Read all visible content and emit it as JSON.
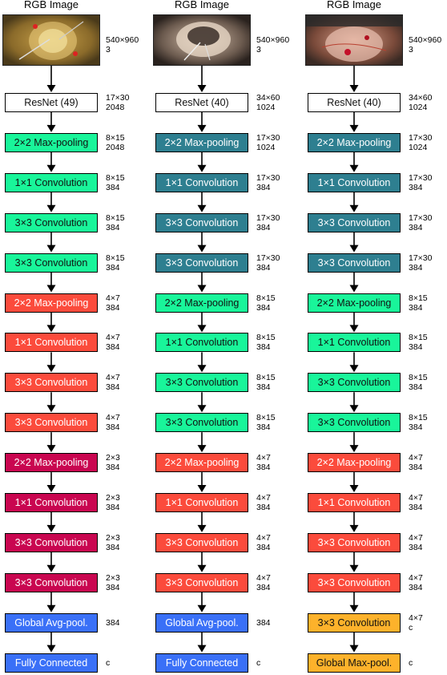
{
  "colors": {
    "white": "#ffffff",
    "green": "#19f59a",
    "teal": "#2e7f90",
    "red": "#fb4b3c",
    "crimson": "#c90650",
    "blue": "#3a70f7",
    "orange": "#fdb22b"
  },
  "columns": [
    {
      "title": "RGB Image",
      "image": {
        "dims": [
          "540×960",
          "3"
        ],
        "scene": "eye-surgery-1"
      },
      "blocks": [
        {
          "label": "ResNet (49)",
          "color": "white",
          "dims": [
            "17×30",
            "2048"
          ]
        },
        {
          "label": "2×2 Max-pooling",
          "color": "green",
          "dims": [
            "8×15",
            "2048"
          ]
        },
        {
          "label": "1×1 Convolution",
          "color": "green",
          "dims": [
            "8×15",
            "384"
          ]
        },
        {
          "label": "3×3 Convolution",
          "color": "green",
          "dims": [
            "8×15",
            "384"
          ]
        },
        {
          "label": "3×3 Convolution",
          "color": "green",
          "dims": [
            "8×15",
            "384"
          ]
        },
        {
          "label": "2×2 Max-pooling",
          "color": "red",
          "dims": [
            "4×7",
            "384"
          ]
        },
        {
          "label": "1×1 Convolution",
          "color": "red",
          "dims": [
            "4×7",
            "384"
          ]
        },
        {
          "label": "3×3 Convolution",
          "color": "red",
          "dims": [
            "4×7",
            "384"
          ]
        },
        {
          "label": "3×3 Convolution",
          "color": "red",
          "dims": [
            "4×7",
            "384"
          ]
        },
        {
          "label": "2×2 Max-pooling",
          "color": "crimson",
          "dims": [
            "2×3",
            "384"
          ]
        },
        {
          "label": "1×1 Convolution",
          "color": "crimson",
          "dims": [
            "2×3",
            "384"
          ]
        },
        {
          "label": "3×3 Convolution",
          "color": "crimson",
          "dims": [
            "2×3",
            "384"
          ]
        },
        {
          "label": "3×3 Convolution",
          "color": "crimson",
          "dims": [
            "2×3",
            "384"
          ]
        },
        {
          "label": "Global Avg-pool.",
          "color": "blue",
          "dims": [
            "384"
          ]
        },
        {
          "label": "Fully Connected",
          "color": "blue",
          "dims": [
            "c"
          ]
        }
      ]
    },
    {
      "title": "RGB Image",
      "image": {
        "dims": [
          "540×960",
          "3"
        ],
        "scene": "eye-surgery-2"
      },
      "blocks": [
        {
          "label": "ResNet (40)",
          "color": "white",
          "dims": [
            "34×60",
            "1024"
          ]
        },
        {
          "label": "2×2 Max-pooling",
          "color": "teal",
          "dims": [
            "17×30",
            "1024"
          ]
        },
        {
          "label": "1×1 Convolution",
          "color": "teal",
          "dims": [
            "17×30",
            "384"
          ]
        },
        {
          "label": "3×3 Convolution",
          "color": "teal",
          "dims": [
            "17×30",
            "384"
          ]
        },
        {
          "label": "3×3 Convolution",
          "color": "teal",
          "dims": [
            "17×30",
            "384"
          ]
        },
        {
          "label": "2×2 Max-pooling",
          "color": "green",
          "dims": [
            "8×15",
            "384"
          ]
        },
        {
          "label": "1×1 Convolution",
          "color": "green",
          "dims": [
            "8×15",
            "384"
          ]
        },
        {
          "label": "3×3 Convolution",
          "color": "green",
          "dims": [
            "8×15",
            "384"
          ]
        },
        {
          "label": "3×3 Convolution",
          "color": "green",
          "dims": [
            "8×15",
            "384"
          ]
        },
        {
          "label": "2×2 Max-pooling",
          "color": "red",
          "dims": [
            "4×7",
            "384"
          ]
        },
        {
          "label": "1×1 Convolution",
          "color": "red",
          "dims": [
            "4×7",
            "384"
          ]
        },
        {
          "label": "3×3 Convolution",
          "color": "red",
          "dims": [
            "4×7",
            "384"
          ]
        },
        {
          "label": "3×3 Convolution",
          "color": "red",
          "dims": [
            "4×7",
            "384"
          ]
        },
        {
          "label": "Global Avg-pool.",
          "color": "blue",
          "dims": [
            "384"
          ]
        },
        {
          "label": "Fully Connected",
          "color": "blue",
          "dims": [
            "c"
          ]
        }
      ]
    },
    {
      "title": "RGB Image",
      "image": {
        "dims": [
          "540×960",
          "3"
        ],
        "scene": "eye-surgery-3"
      },
      "blocks": [
        {
          "label": "ResNet (40)",
          "color": "white",
          "dims": [
            "34×60",
            "1024"
          ]
        },
        {
          "label": "2×2 Max-pooling",
          "color": "teal",
          "dims": [
            "17×30",
            "1024"
          ]
        },
        {
          "label": "1×1 Convolution",
          "color": "teal",
          "dims": [
            "17×30",
            "384"
          ]
        },
        {
          "label": "3×3 Convolution",
          "color": "teal",
          "dims": [
            "17×30",
            "384"
          ]
        },
        {
          "label": "3×3 Convolution",
          "color": "teal",
          "dims": [
            "17×30",
            "384"
          ]
        },
        {
          "label": "2×2 Max-pooling",
          "color": "green",
          "dims": [
            "8×15",
            "384"
          ]
        },
        {
          "label": "1×1 Convolution",
          "color": "green",
          "dims": [
            "8×15",
            "384"
          ]
        },
        {
          "label": "3×3 Convolution",
          "color": "green",
          "dims": [
            "8×15",
            "384"
          ]
        },
        {
          "label": "3×3 Convolution",
          "color": "green",
          "dims": [
            "8×15",
            "384"
          ]
        },
        {
          "label": "2×2 Max-pooling",
          "color": "red",
          "dims": [
            "4×7",
            "384"
          ]
        },
        {
          "label": "1×1 Convolution",
          "color": "red",
          "dims": [
            "4×7",
            "384"
          ]
        },
        {
          "label": "3×3 Convolution",
          "color": "red",
          "dims": [
            "4×7",
            "384"
          ]
        },
        {
          "label": "3×3 Convolution",
          "color": "red",
          "dims": [
            "4×7",
            "384"
          ]
        },
        {
          "label": "3×3 Convolution",
          "color": "orange",
          "dims": [
            "4×7",
            "c"
          ]
        },
        {
          "label": "Global Max-pool.",
          "color": "orange",
          "dims": [
            "c"
          ]
        }
      ]
    }
  ]
}
